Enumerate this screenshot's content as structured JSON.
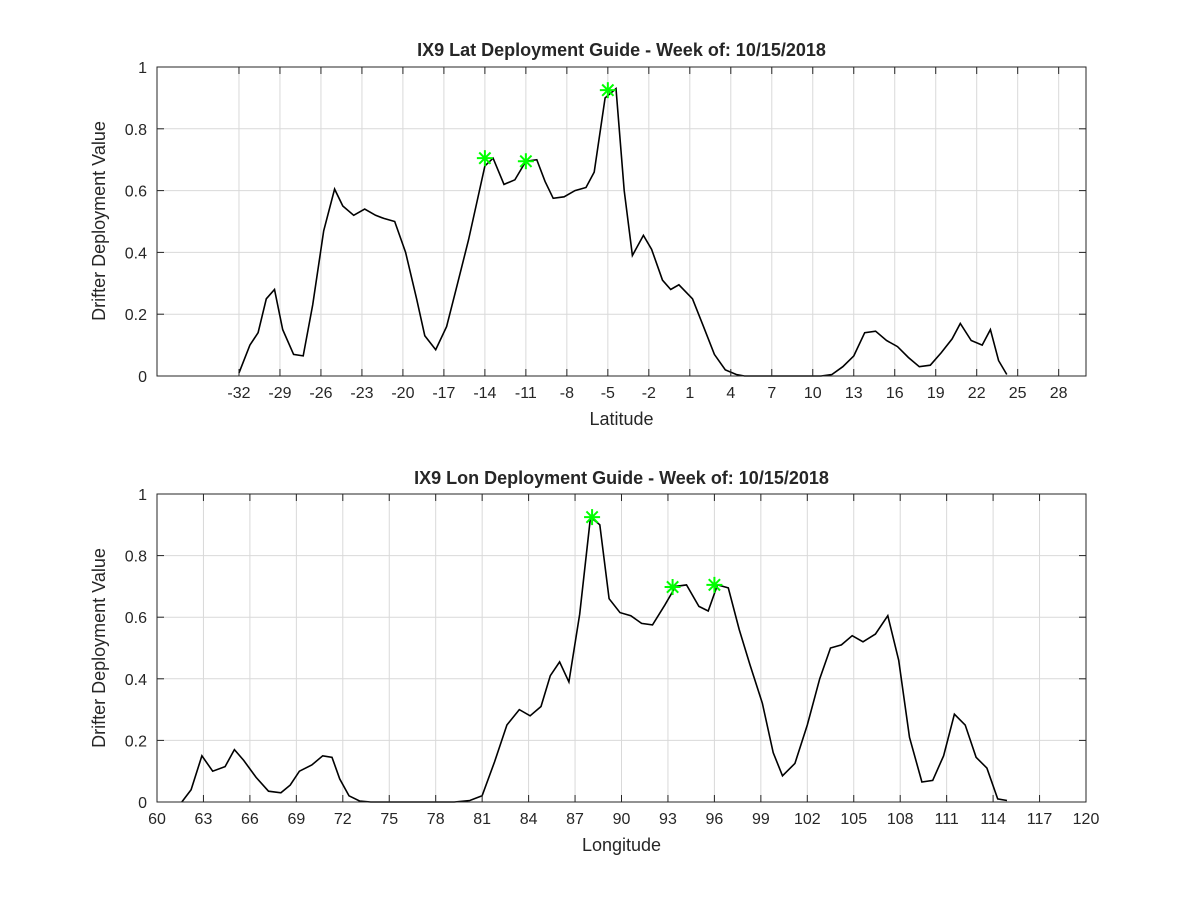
{
  "chart_data": [
    {
      "type": "line",
      "title": "IX9 Lat Deployment Guide - Week of: 10/15/2018",
      "xlabel": "Latitude",
      "ylabel": "Drifter Deployment Value",
      "xlim": [
        -38,
        30
      ],
      "ylim": [
        0,
        1
      ],
      "grid": true,
      "xticks": [
        -32,
        -29,
        -26,
        -23,
        -20,
        -17,
        -14,
        -11,
        -8,
        -5,
        -2,
        1,
        4,
        7,
        10,
        13,
        16,
        19,
        22,
        25,
        28
      ],
      "yticks": [
        0,
        0.2,
        0.4,
        0.6,
        0.8,
        1
      ],
      "ytick_labels": [
        "0",
        "0.2",
        "0.4",
        "0.6",
        "0.8",
        "1"
      ],
      "line_color": "#000000",
      "series": [
        {
          "x": [
            -32,
            -31.2,
            -30.6,
            -30,
            -29.4,
            -28.8,
            -28,
            -27.3,
            -26.6,
            -25.8,
            -25,
            -24.4,
            -23.6,
            -22.8,
            -22,
            -21.4,
            -20.6,
            -19.8,
            -19,
            -18.4,
            -17.6,
            -16.8,
            -16,
            -15.2,
            -14.6,
            -14,
            -13.4,
            -12.6,
            -11.8,
            -11,
            -10.2,
            -9.6,
            -9,
            -8.2,
            -7.4,
            -6.6,
            -6,
            -5.2,
            -4.4,
            -3.8,
            -3.2,
            -2.4,
            -1.8,
            -1,
            -0.4,
            0.2,
            1.2,
            2,
            2.8,
            3.6,
            4.4,
            5,
            5.8,
            6.6,
            7.4,
            8.2,
            9,
            9.8,
            10.6,
            11.4,
            12.2,
            13,
            13.8,
            14.6,
            15.4,
            16.2,
            17,
            17.8,
            18.6,
            19.4,
            20.2,
            20.8,
            21.6,
            22.4,
            23,
            23.6,
            24.2
          ],
          "y": [
            0.01,
            0.1,
            0.14,
            0.25,
            0.28,
            0.15,
            0.07,
            0.065,
            0.23,
            0.47,
            0.605,
            0.55,
            0.52,
            0.54,
            0.52,
            0.51,
            0.5,
            0.4,
            0.25,
            0.13,
            0.085,
            0.16,
            0.3,
            0.44,
            0.56,
            0.68,
            0.705,
            0.62,
            0.635,
            0.695,
            0.7,
            0.63,
            0.575,
            0.58,
            0.6,
            0.61,
            0.66,
            0.9,
            0.93,
            0.6,
            0.39,
            0.455,
            0.41,
            0.31,
            0.28,
            0.295,
            0.25,
            0.16,
            0.07,
            0.02,
            0.005,
            0,
            0,
            0,
            0,
            0,
            0,
            0,
            0,
            0.005,
            0.03,
            0.065,
            0.14,
            0.145,
            0.115,
            0.095,
            0.06,
            0.03,
            0.035,
            0.075,
            0.12,
            0.17,
            0.115,
            0.1,
            0.15,
            0.05,
            0.005
          ]
        }
      ],
      "markers": {
        "symbol": "*",
        "color": "#00ff00",
        "points": [
          {
            "x": -14,
            "y": 0.705
          },
          {
            "x": -11,
            "y": 0.695
          },
          {
            "x": -5,
            "y": 0.925
          }
        ]
      }
    },
    {
      "type": "line",
      "title": "IX9 Lon Deployment Guide - Week of: 10/15/2018",
      "xlabel": "Longitude",
      "ylabel": "Drifter Deployment Value",
      "xlim": [
        60,
        120
      ],
      "ylim": [
        0,
        1
      ],
      "grid": true,
      "xticks": [
        60,
        63,
        66,
        69,
        72,
        75,
        78,
        81,
        84,
        87,
        90,
        93,
        96,
        99,
        102,
        105,
        108,
        111,
        114,
        117,
        120
      ],
      "yticks": [
        0,
        0.2,
        0.4,
        0.6,
        0.8,
        1
      ],
      "ytick_labels": [
        "0",
        "0.2",
        "0.4",
        "0.6",
        "0.8",
        "1"
      ],
      "line_color": "#000000",
      "series": [
        {
          "x": [
            61.6,
            62.2,
            62.9,
            63.6,
            64.4,
            65,
            65.6,
            66.4,
            67.2,
            68,
            68.6,
            69.2,
            70,
            70.7,
            71.3,
            71.8,
            72.4,
            73.1,
            73.8,
            74.6,
            75.4,
            76.2,
            77.2,
            78.2,
            79.2,
            80.2,
            81,
            81.8,
            82.6,
            83.4,
            84.1,
            84.8,
            85.4,
            86,
            86.6,
            87.3,
            88,
            88.6,
            89.2,
            89.9,
            90.6,
            91.3,
            92,
            92.8,
            93.5,
            94.2,
            95,
            95.6,
            96.2,
            96.9,
            97.6,
            98.3,
            99.1,
            99.8,
            100.4,
            101.2,
            102,
            102.8,
            103.5,
            104.2,
            104.9,
            105.6,
            106.4,
            107.2,
            107.9,
            108.6,
            109.4,
            110.1,
            110.8,
            111.5,
            112.2,
            112.9,
            113.6,
            114.3,
            114.9
          ],
          "y": [
            0,
            0.04,
            0.15,
            0.1,
            0.115,
            0.17,
            0.135,
            0.08,
            0.035,
            0.03,
            0.055,
            0.1,
            0.12,
            0.15,
            0.145,
            0.075,
            0.02,
            0.003,
            0,
            0,
            0,
            0,
            0,
            0,
            0,
            0.005,
            0.02,
            0.13,
            0.25,
            0.3,
            0.28,
            0.31,
            0.41,
            0.455,
            0.39,
            0.61,
            0.925,
            0.9,
            0.66,
            0.615,
            0.605,
            0.58,
            0.575,
            0.64,
            0.7,
            0.705,
            0.635,
            0.62,
            0.705,
            0.695,
            0.56,
            0.445,
            0.32,
            0.16,
            0.085,
            0.125,
            0.25,
            0.4,
            0.5,
            0.51,
            0.54,
            0.52,
            0.545,
            0.605,
            0.46,
            0.21,
            0.065,
            0.07,
            0.15,
            0.285,
            0.25,
            0.145,
            0.11,
            0.01,
            0.005
          ]
        }
      ],
      "markers": {
        "symbol": "*",
        "color": "#00ff00",
        "points": [
          {
            "x": 88.1,
            "y": 0.925
          },
          {
            "x": 93.3,
            "y": 0.698
          },
          {
            "x": 96.0,
            "y": 0.705
          }
        ]
      }
    }
  ]
}
